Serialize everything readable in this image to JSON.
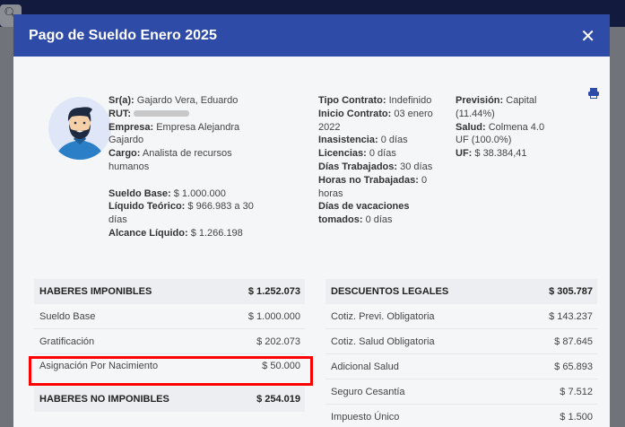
{
  "modal": {
    "title": "Pago de Sueldo Enero 2025",
    "close_icon": "close-icon",
    "print_icon": "printer-icon"
  },
  "employee": {
    "sr_label": "Sr(a):",
    "sr_value": "Gajardo Vera, Eduardo",
    "rut_label": "RUT:",
    "empresa_label": "Empresa:",
    "empresa_value": "Empresa Alejandra Gajardo",
    "cargo_label": "Cargo:",
    "cargo_value": "Analista de recursos humanos",
    "sueldo_base_label": "Sueldo Base:",
    "sueldo_base_value": "$ 1.000.000",
    "liquido_teorico_label": "Líquido Teórico:",
    "liquido_teorico_value": "$ 966.983 a 30 días",
    "alcance_liquido_label": "Alcance Líquido:",
    "alcance_liquido_value": "$ 1.266.198"
  },
  "contract": {
    "tipo_label": "Tipo Contrato:",
    "tipo_value": "Indefinido",
    "inicio_label": "Inicio Contrato:",
    "inicio_value": "03 enero 2022",
    "inasistencia_label": "Inasistencia:",
    "inasistencia_value": "0 días",
    "licencias_label": "Licencias:",
    "licencias_value": "0 días",
    "dias_trab_label": "Días Trabajados:",
    "dias_trab_value": "30 días",
    "horas_no_trab_label": "Horas no Trabajadas:",
    "horas_no_trab_value": "0 horas",
    "vacaciones_label": "Días de vacaciones tomados:",
    "vacaciones_value": "0 días"
  },
  "prevision": {
    "prevision_label": "Previsión:",
    "prevision_value": "Capital (11.44%)",
    "salud_label": "Salud:",
    "salud_value": "Colmena 4.0 UF (100.0%)",
    "uf_label": "UF:",
    "uf_value": "$ 38.384,41"
  },
  "haberes_imponibles": {
    "title": "HABERES IMPONIBLES",
    "total": "$ 1.252.073",
    "rows": [
      {
        "label": "Sueldo Base",
        "value": "$ 1.000.000"
      },
      {
        "label": "Gratificación",
        "value": "$ 202.073"
      },
      {
        "label": "Asignación Por Nacimiento",
        "value": "$ 50.000"
      }
    ]
  },
  "haberes_no_imponibles": {
    "title": "HABERES NO IMPONIBLES",
    "total": "$ 254.019"
  },
  "descuentos_legales": {
    "title": "DESCUENTOS LEGALES",
    "total": "$ 305.787",
    "rows": [
      {
        "label": "Cotiz. Previ. Obligatoria",
        "value": "$ 143.237"
      },
      {
        "label": "Cotiz. Salud Obligatoria",
        "value": "$ 87.645"
      },
      {
        "label": "Adicional Salud",
        "value": "$ 65.893"
      },
      {
        "label": "Seguro Cesantía",
        "value": "$ 7.512"
      },
      {
        "label": "Impuesto Único",
        "value": "$ 1.500"
      }
    ]
  },
  "highlight_color": "#ff0000",
  "header_color": "#2f4ba8"
}
